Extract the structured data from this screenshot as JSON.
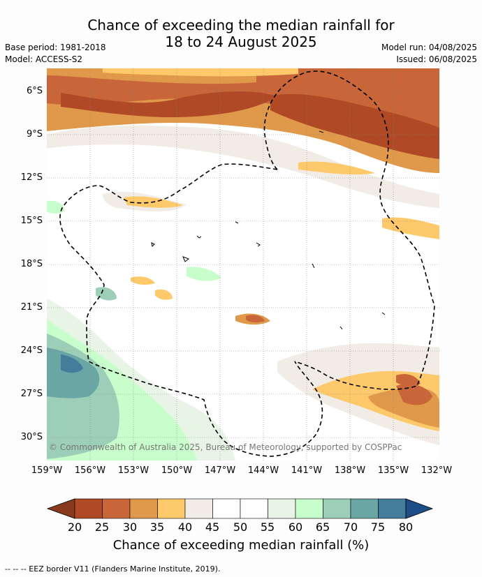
{
  "title": {
    "line1": "Chance of exceeding the median rainfall for",
    "line2": "18 to 24 August 2025"
  },
  "meta": {
    "base_period": "Base period: 1981-2018",
    "model": "Model: ACCESS-S2",
    "model_run": "Model run: 04/08/2025",
    "issued": "Issued: 06/08/2025"
  },
  "map": {
    "lat_labels": [
      "6°S",
      "9°S",
      "12°S",
      "15°S",
      "18°S",
      "21°S",
      "24°S",
      "27°S",
      "30°S"
    ],
    "lon_labels": [
      "159°W",
      "156°W",
      "153°W",
      "150°W",
      "147°W",
      "144°W",
      "141°W",
      "138°W",
      "135°W",
      "132°W"
    ],
    "copyright": "© Commonwealth of Australia 2025, Bureau of Meteorology, supported by COSPPac"
  },
  "colorbar": {
    "title": "Chance of exceeding median rainfall (%)",
    "ticks": [
      "20",
      "25",
      "30",
      "35",
      "40",
      "45",
      "50",
      "55",
      "60",
      "65",
      "70",
      "75",
      "80"
    ],
    "colors": [
      "#8a3a1c",
      "#b04a26",
      "#c8663a",
      "#e0994a",
      "#fec96a",
      "#f1ece5",
      "#ffffff",
      "#ffffff",
      "#e8f5e6",
      "#c8fdcc",
      "#9dcfb8",
      "#6aa6a4",
      "#447d9c",
      "#1d4e87"
    ]
  },
  "footnote": "--  --  -- EEZ border V11 (Flanders Marine Institute, 2019)."
}
